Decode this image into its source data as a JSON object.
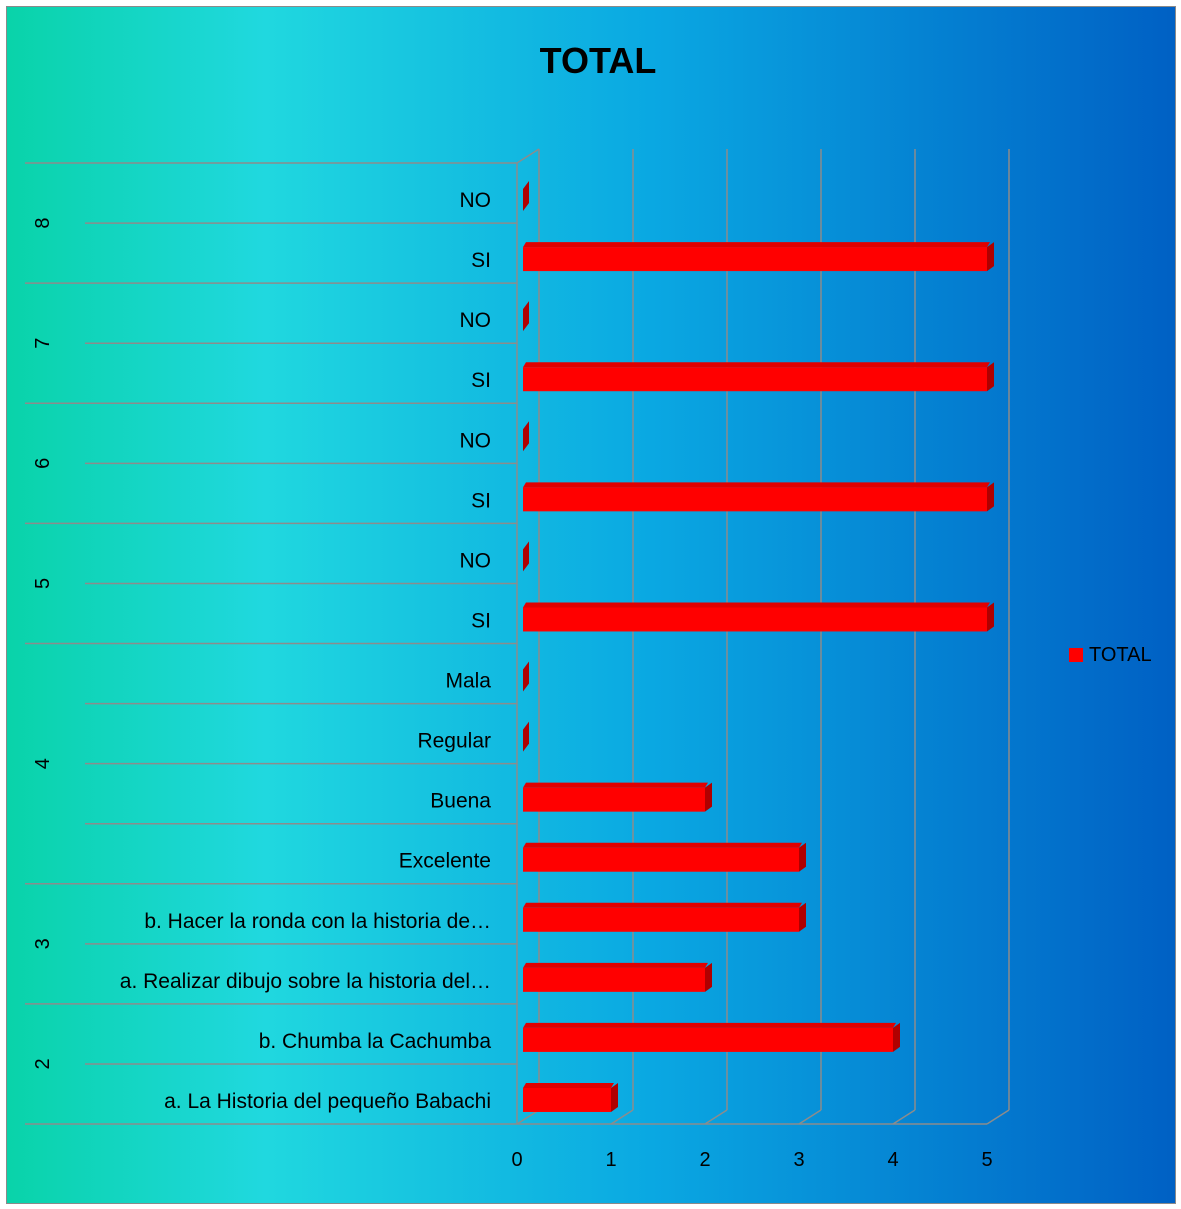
{
  "chart_data": {
    "type": "bar",
    "orientation": "horizontal",
    "three_d": true,
    "title": "TOTAL",
    "xlim": [
      0,
      5
    ],
    "x_ticks": [
      "0",
      "1",
      "2",
      "3",
      "4",
      "5"
    ],
    "grid": true,
    "legend": {
      "position": "right",
      "entries": [
        "TOTAL"
      ]
    },
    "groups": [
      {
        "label": "8",
        "categories": [
          "NO",
          "SI"
        ]
      },
      {
        "label": "7",
        "categories": [
          "NO",
          "SI"
        ]
      },
      {
        "label": "6",
        "categories": [
          "NO",
          "SI"
        ]
      },
      {
        "label": "5",
        "categories": [
          "NO",
          "SI"
        ]
      },
      {
        "label": "4",
        "categories": [
          "Mala",
          "Regular",
          "Buena",
          "Excelente"
        ]
      },
      {
        "label": "3",
        "categories": [
          "b. Hacer la ronda con la historia de…",
          "a. Realizar dibujo sobre la historia del…"
        ]
      },
      {
        "label": "2",
        "categories": [
          "b. Chumba la Cachumba",
          "a. La Historia del pequeño Babachi"
        ]
      }
    ],
    "series": [
      {
        "name": "TOTAL",
        "color": "#ff0000",
        "values": [
          0,
          5,
          0,
          5,
          0,
          5,
          0,
          5,
          0,
          0,
          2,
          3,
          3,
          2,
          4,
          1
        ]
      }
    ]
  }
}
